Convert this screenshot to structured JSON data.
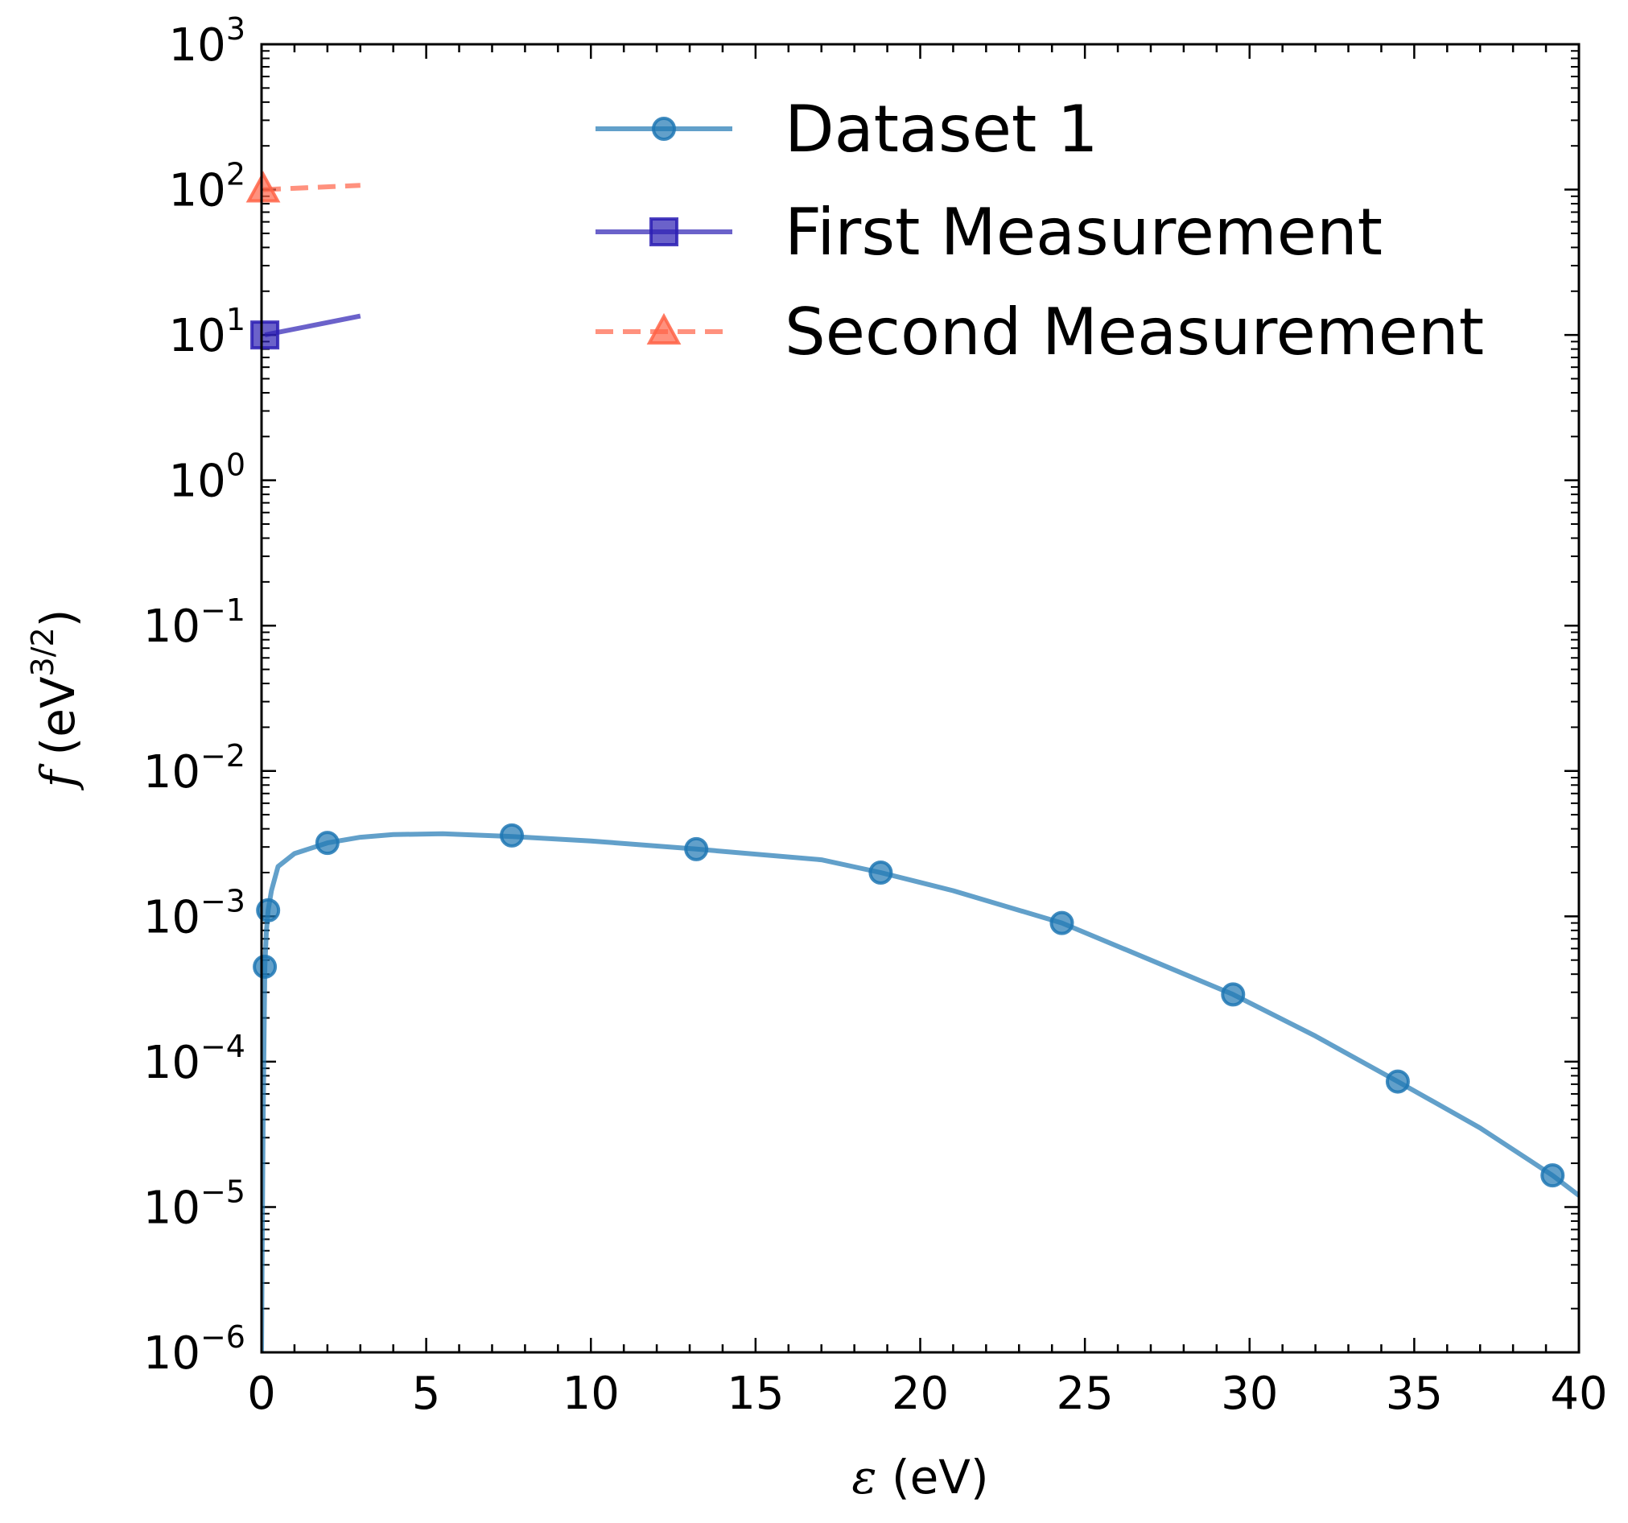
{
  "chart_data": {
    "type": "line",
    "xlabel": "ε (eV)",
    "ylabel": "f (eV3/2)",
    "xlim": [
      0,
      40
    ],
    "ylim": [
      1e-06,
      1000
    ],
    "yscale": "log",
    "grid": false,
    "legend_position": "top-right",
    "x_ticks": [
      "0",
      "5",
      "10",
      "15",
      "20",
      "25",
      "30",
      "35",
      "40"
    ],
    "y_ticks": [
      {
        "base": "10",
        "exp": "−6",
        "value": 1e-06
      },
      {
        "base": "10",
        "exp": "−5",
        "value": 1e-05
      },
      {
        "base": "10",
        "exp": "−4",
        "value": 0.0001
      },
      {
        "base": "10",
        "exp": "−3",
        "value": 0.001
      },
      {
        "base": "10",
        "exp": "−2",
        "value": 0.01
      },
      {
        "base": "10",
        "exp": "−1",
        "value": 0.1
      },
      {
        "base": "10",
        "exp": "0",
        "value": 1
      },
      {
        "base": "10",
        "exp": "1",
        "value": 10
      },
      {
        "base": "10",
        "exp": "2",
        "value": 100
      },
      {
        "base": "10",
        "exp": "3",
        "value": 1000
      }
    ],
    "series": [
      {
        "name": "Dataset 1",
        "color": "#1f77b4",
        "linestyle": "solid",
        "marker": "circle",
        "line_x": [
          0.0,
          0.02,
          0.05,
          0.1,
          0.15,
          0.2,
          0.3,
          0.5,
          1.0,
          2.0,
          3.0,
          4.0,
          5.5,
          7.5,
          10.0,
          13.2,
          17.0,
          18.8,
          21.0,
          24.3,
          27.0,
          29.5,
          32.0,
          34.5,
          37.0,
          39.2,
          40.0
        ],
        "line_y": [
          1e-06,
          5e-06,
          4e-05,
          0.00045,
          0.0008,
          0.0011,
          0.0015,
          0.0022,
          0.0027,
          0.0032,
          0.0035,
          0.00365,
          0.0037,
          0.00355,
          0.0033,
          0.0029,
          0.00245,
          0.002,
          0.0015,
          0.0009,
          0.0005,
          0.00029,
          0.00015,
          7.3e-05,
          3.5e-05,
          1.65e-05,
          1.2e-05
        ],
        "points_x": [
          0.1,
          0.2,
          2.0,
          7.6,
          13.2,
          18.8,
          24.3,
          29.5,
          34.5,
          39.2
        ],
        "points_y": [
          0.00045,
          0.0011,
          0.0032,
          0.0036,
          0.0029,
          0.002,
          0.0009,
          0.00029,
          7.3e-05,
          1.65e-05
        ]
      },
      {
        "name": "First Measurement",
        "color": "#2c1fb4",
        "linestyle": "solid",
        "marker": "square",
        "line_x": [
          0.1,
          3.0
        ],
        "line_y": [
          10,
          13.5
        ],
        "points_x": [
          0.1
        ],
        "points_y": [
          10
        ]
      },
      {
        "name": "Second Measurement",
        "color": "#ff6347",
        "linestyle": "dashed",
        "marker": "triangle",
        "line_x": [
          0.05,
          3.0
        ],
        "line_y": [
          100,
          107
        ],
        "points_x": [
          0.05
        ],
        "points_y": [
          100
        ]
      }
    ]
  }
}
